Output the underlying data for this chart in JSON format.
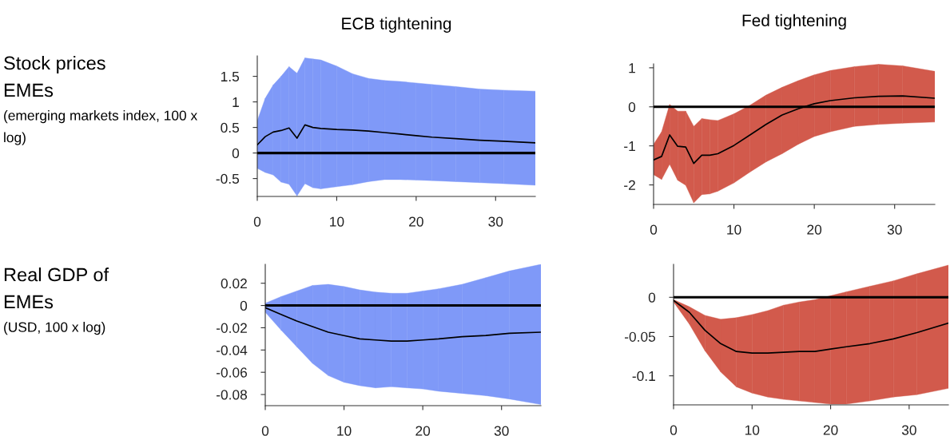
{
  "chart_data": [
    {
      "type": "line",
      "title": "ECB tightening",
      "ylabel": "Stock prices\nEMEs",
      "annotations": [
        "(emerging markets index, 100 x\nlog)"
      ],
      "x": [
        0,
        1,
        2,
        3,
        4,
        5,
        6,
        7,
        8,
        10,
        12,
        14,
        16,
        18,
        20,
        22,
        25,
        28,
        31,
        35
      ],
      "series": [
        {
          "color": "#000000",
          "colors": [
            "#7f99f8",
            "#7f99f8",
            "#7f99f8",
            "#7f99f8",
            "#7f99f8",
            "#7f99f8",
            "#7f99f8",
            "#7f99f8",
            "#7f99f8",
            "#7f99f8",
            "#7f99f8",
            "#7f99f8",
            "#7f99f8",
            "#7f99f8",
            "#7f99f8",
            "#7f99f8",
            "#7f99f8",
            "#7f99f8",
            "#7f99f8",
            "#7f99f8"
          ],
          "values": [
            0.16,
            0.32,
            0.41,
            0.44,
            0.49,
            0.29,
            0.55,
            0.5,
            0.48,
            0.46,
            0.45,
            0.43,
            0.4,
            0.37,
            0.34,
            0.31,
            0.28,
            0.25,
            0.23,
            0.2
          ],
          "upper": [
            0.63,
            1.07,
            1.33,
            1.5,
            1.69,
            1.56,
            1.86,
            1.84,
            1.82,
            1.7,
            1.55,
            1.46,
            1.42,
            1.4,
            1.37,
            1.34,
            1.3,
            1.25,
            1.23,
            1.21
          ],
          "lower": [
            -0.3,
            -0.38,
            -0.43,
            -0.57,
            -0.61,
            -0.84,
            -0.6,
            -0.68,
            -0.7,
            -0.66,
            -0.62,
            -0.56,
            -0.52,
            -0.52,
            -0.53,
            -0.54,
            -0.56,
            -0.58,
            -0.6,
            -0.63
          ]
        }
      ],
      "xlim": [
        0,
        35
      ],
      "xticks": [
        0,
        10,
        20,
        30
      ],
      "ylim": [
        -0.85,
        1.9
      ],
      "yticks": [
        -0.5,
        0,
        0.5,
        1,
        1.5
      ],
      "ref_lines": [
        {
          "axis": "y",
          "value": 0,
          "color": "#000000"
        }
      ]
    },
    {
      "type": "line",
      "title": "Fed tightening",
      "x": [
        0,
        1,
        2,
        3,
        4,
        5,
        6,
        7,
        8,
        10,
        12,
        14,
        16,
        18,
        20,
        22,
        25,
        28,
        31,
        35
      ],
      "series": [
        {
          "color": "#000000",
          "colors": [
            "#d25a4c",
            "#d25a4c",
            "#d25a4c",
            "#d25a4c",
            "#d25a4c",
            "#d25a4c",
            "#d25a4c",
            "#d25a4c",
            "#d25a4c",
            "#d25a4c",
            "#d25a4c",
            "#d25a4c",
            "#d25a4c",
            "#d25a4c",
            "#d25a4c",
            "#d25a4c",
            "#d25a4c",
            "#d25a4c",
            "#d25a4c",
            "#d25a4c"
          ],
          "values": [
            -1.36,
            -1.27,
            -0.72,
            -1.01,
            -1.03,
            -1.45,
            -1.24,
            -1.24,
            -1.2,
            -0.99,
            -0.72,
            -0.45,
            -0.21,
            -0.05,
            0.08,
            0.16,
            0.23,
            0.27,
            0.28,
            0.22
          ],
          "upper": [
            -0.96,
            -0.64,
            0.06,
            -0.11,
            -0.11,
            -0.5,
            -0.3,
            -0.33,
            -0.35,
            -0.18,
            0.04,
            0.3,
            0.5,
            0.67,
            0.82,
            0.93,
            1.03,
            1.09,
            1.05,
            0.91
          ],
          "lower": [
            -1.74,
            -1.86,
            -1.47,
            -1.88,
            -2.01,
            -2.46,
            -2.25,
            -2.23,
            -2.16,
            -1.95,
            -1.67,
            -1.41,
            -1.2,
            -0.96,
            -0.76,
            -0.64,
            -0.5,
            -0.45,
            -0.42,
            -0.39
          ]
        }
      ],
      "xlim": [
        0,
        35
      ],
      "xticks": [
        0,
        10,
        20,
        30
      ],
      "ylim": [
        -2.5,
        1.1
      ],
      "yticks": [
        -2,
        -1,
        0,
        1
      ],
      "ref_lines": [
        {
          "axis": "y",
          "value": 0,
          "color": "#000000"
        }
      ]
    },
    {
      "type": "line",
      "ylabel": "Real GDP of\nEMEs",
      "annotations": [
        "(USD, 100 x log)"
      ],
      "x": [
        0,
        2,
        4,
        6,
        8,
        10,
        12,
        14,
        16,
        18,
        20,
        22,
        25,
        28,
        31,
        35
      ],
      "series": [
        {
          "color": "#000000",
          "colors": [
            "#7f99f8",
            "#7f99f8",
            "#7f99f8",
            "#7f99f8",
            "#7f99f8",
            "#7f99f8",
            "#7f99f8",
            "#7f99f8",
            "#7f99f8",
            "#7f99f8",
            "#7f99f8",
            "#7f99f8",
            "#7f99f8",
            "#7f99f8",
            "#7f99f8",
            "#7f99f8"
          ],
          "values": [
            -0.002,
            -0.008,
            -0.014,
            -0.019,
            -0.024,
            -0.027,
            -0.03,
            -0.031,
            -0.032,
            -0.032,
            -0.031,
            -0.03,
            -0.028,
            -0.027,
            -0.025,
            -0.024
          ],
          "upper": [
            0.002,
            0.008,
            0.013,
            0.018,
            0.019,
            0.017,
            0.014,
            0.012,
            0.011,
            0.011,
            0.013,
            0.015,
            0.019,
            0.025,
            0.031,
            0.037
          ],
          "lower": [
            -0.006,
            -0.022,
            -0.037,
            -0.052,
            -0.063,
            -0.069,
            -0.072,
            -0.074,
            -0.073,
            -0.074,
            -0.075,
            -0.077,
            -0.079,
            -0.081,
            -0.084,
            -0.089
          ]
        }
      ],
      "xlim": [
        0,
        35
      ],
      "xticks": [
        0,
        10,
        20,
        30
      ],
      "ylim": [
        -0.09,
        0.037
      ],
      "yticks": [
        -0.08,
        -0.06,
        -0.04,
        -0.02,
        0,
        0.02
      ],
      "ref_lines": [
        {
          "axis": "y",
          "value": 0,
          "color": "#000000"
        }
      ]
    },
    {
      "type": "line",
      "x": [
        0,
        2,
        4,
        6,
        8,
        10,
        12,
        14,
        16,
        18,
        20,
        22,
        25,
        28,
        31,
        35
      ],
      "series": [
        {
          "color": "#000000",
          "colors": [
            "#d25a4c",
            "#d25a4c",
            "#d25a4c",
            "#d25a4c",
            "#d25a4c",
            "#d25a4c",
            "#d25a4c",
            "#d25a4c",
            "#d25a4c",
            "#d25a4c",
            "#d25a4c",
            "#d25a4c",
            "#d25a4c",
            "#d25a4c",
            "#d25a4c",
            "#d25a4c"
          ],
          "values": [
            -0.004,
            -0.019,
            -0.042,
            -0.059,
            -0.069,
            -0.071,
            -0.071,
            -0.07,
            -0.069,
            -0.069,
            -0.066,
            -0.063,
            -0.059,
            -0.053,
            -0.045,
            -0.033
          ],
          "upper": [
            -0.003,
            -0.012,
            -0.023,
            -0.028,
            -0.026,
            -0.022,
            -0.017,
            -0.01,
            -0.006,
            -0.003,
            0.002,
            0.007,
            0.014,
            0.021,
            0.03,
            0.041
          ],
          "lower": [
            -0.006,
            -0.034,
            -0.068,
            -0.095,
            -0.114,
            -0.122,
            -0.127,
            -0.13,
            -0.132,
            -0.134,
            -0.136,
            -0.136,
            -0.132,
            -0.127,
            -0.124,
            -0.116
          ]
        }
      ],
      "xlim": [
        0,
        35
      ],
      "xticks": [
        0,
        10,
        20,
        30
      ],
      "ylim": [
        -0.137,
        0.042
      ],
      "yticks": [
        -0.1,
        -0.05,
        0
      ],
      "ref_lines": [
        {
          "axis": "y",
          "value": 0,
          "color": "#000000"
        }
      ]
    }
  ]
}
